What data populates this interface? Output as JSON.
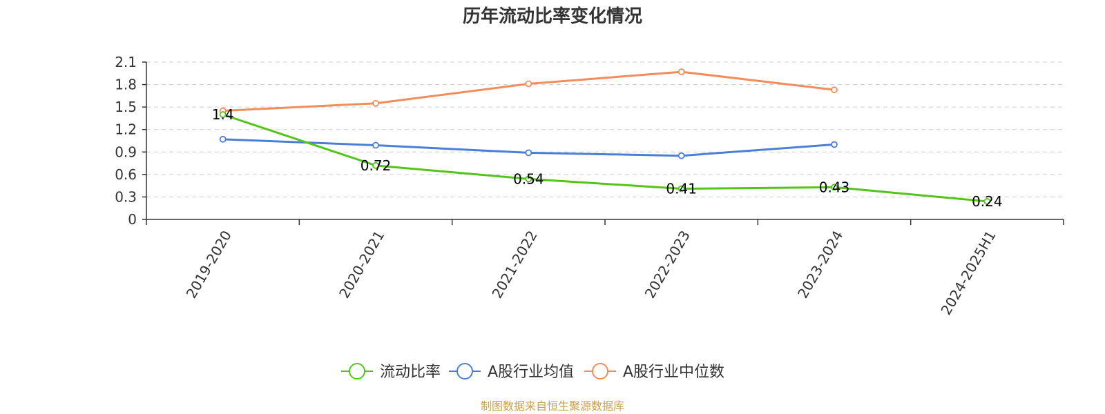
{
  "chart_data": {
    "type": "line",
    "title": "历年流动比率变化情况",
    "categories": [
      "2019-2020",
      "2020-2021",
      "2021-2022",
      "2022-2023",
      "2023-2024",
      "2024-2025H1"
    ],
    "ylim": [
      0,
      2.1
    ],
    "yticks": [
      "0",
      "0.3",
      "0.6",
      "0.9",
      "1.2",
      "1.5",
      "1.8",
      "2.1"
    ],
    "grid": true,
    "legend_position": "bottom",
    "series": [
      {
        "name": "流动比率",
        "color": "#52c41a",
        "values": [
          1.4,
          0.72,
          0.54,
          0.41,
          0.43,
          0.24
        ],
        "labels": [
          "1.4",
          "0.72",
          "0.54",
          "0.41",
          "0.43",
          "0.24"
        ]
      },
      {
        "name": "A股行业均值",
        "color": "#4a7fd9",
        "values": [
          1.07,
          0.99,
          0.89,
          0.85,
          1.0,
          null
        ]
      },
      {
        "name": "A股行业中位数",
        "color": "#f48c5a",
        "values": [
          1.45,
          1.55,
          1.81,
          1.97,
          1.73,
          null
        ]
      }
    ]
  },
  "source": "制图数据来自恒生聚源数据库"
}
